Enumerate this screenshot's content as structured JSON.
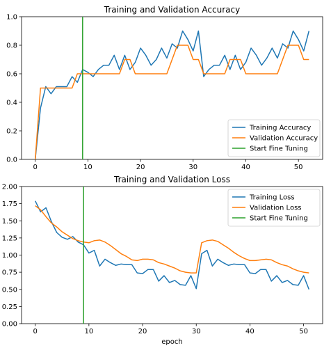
{
  "chart_data": [
    {
      "type": "line",
      "title": "Training and Validation Accuracy",
      "xlabel": "",
      "ylabel": "",
      "xlim": [
        -2.6,
        54.6
      ],
      "ylim": [
        0.0,
        1.0
      ],
      "xticks": [
        0,
        10,
        20,
        30,
        40,
        50
      ],
      "yticks": [
        0.0,
        0.2,
        0.4,
        0.6,
        0.8,
        1.0
      ],
      "ytick_labels": [
        "0.0",
        "0.2",
        "0.4",
        "0.6",
        "0.8",
        "1.0"
      ],
      "legend": {
        "placement": "bottom-right"
      },
      "vline": {
        "x": 9,
        "name": "Start Fine Tuning",
        "color": "#2ca02c"
      },
      "series": [
        {
          "name": "Training Accuracy",
          "color": "#1f77b4",
          "x": [
            0,
            1,
            2,
            3,
            4,
            5,
            6,
            7,
            8,
            9,
            10,
            11,
            12,
            13,
            14,
            15,
            16,
            17,
            18,
            19,
            20,
            21,
            22,
            23,
            24,
            25,
            26,
            27,
            28,
            29,
            30,
            31,
            32,
            33,
            34,
            35,
            36,
            37,
            38,
            39,
            40,
            41,
            42,
            43,
            44,
            45,
            46,
            47,
            48,
            49,
            50,
            51,
            52
          ],
          "values": [
            0.0,
            0.36,
            0.51,
            0.46,
            0.51,
            0.51,
            0.51,
            0.58,
            0.54,
            0.63,
            0.61,
            0.58,
            0.63,
            0.66,
            0.66,
            0.73,
            0.63,
            0.73,
            0.63,
            0.68,
            0.78,
            0.73,
            0.66,
            0.7,
            0.78,
            0.71,
            0.81,
            0.78,
            0.9,
            0.84,
            0.76,
            0.9,
            0.58,
            0.63,
            0.66,
            0.66,
            0.73,
            0.63,
            0.73,
            0.63,
            0.68,
            0.78,
            0.73,
            0.66,
            0.71,
            0.78,
            0.71,
            0.81,
            0.78,
            0.9,
            0.84,
            0.76,
            0.9
          ]
        },
        {
          "name": "Validation Accuracy",
          "color": "#ff7f0e",
          "x": [
            0,
            1,
            2,
            3,
            4,
            5,
            6,
            7,
            8,
            9,
            10,
            11,
            12,
            13,
            14,
            15,
            16,
            17,
            18,
            19,
            20,
            21,
            22,
            23,
            24,
            25,
            26,
            27,
            28,
            29,
            30,
            31,
            32,
            33,
            34,
            35,
            36,
            37,
            38,
            39,
            40,
            41,
            42,
            43,
            44,
            45,
            46,
            47,
            48,
            49,
            50,
            51,
            52
          ],
          "values": [
            0.0,
            0.5,
            0.5,
            0.5,
            0.5,
            0.5,
            0.5,
            0.5,
            0.6,
            0.6,
            0.6,
            0.6,
            0.6,
            0.6,
            0.6,
            0.6,
            0.6,
            0.7,
            0.7,
            0.6,
            0.6,
            0.6,
            0.6,
            0.6,
            0.6,
            0.6,
            0.7,
            0.8,
            0.8,
            0.8,
            0.7,
            0.7,
            0.6,
            0.6,
            0.6,
            0.6,
            0.6,
            0.7,
            0.7,
            0.7,
            0.6,
            0.6,
            0.6,
            0.6,
            0.6,
            0.6,
            0.6,
            0.7,
            0.8,
            0.8,
            0.8,
            0.7,
            0.7
          ]
        }
      ]
    },
    {
      "type": "line",
      "title": "Training and Validation Loss",
      "xlabel": "epoch",
      "ylabel": "",
      "xlim": [
        -2.55,
        53.55
      ],
      "ylim": [
        0.0,
        2.0
      ],
      "xticks": [
        0,
        10,
        20,
        30,
        40,
        50
      ],
      "yticks": [
        0.0,
        0.25,
        0.5,
        0.75,
        1.0,
        1.25,
        1.5,
        1.75,
        2.0
      ],
      "ytick_labels": [
        "0.00",
        "0.25",
        "0.50",
        "0.75",
        "1.00",
        "1.25",
        "1.50",
        "1.75",
        "2.00"
      ],
      "legend": {
        "placement": "top-right"
      },
      "vline": {
        "x": 9,
        "name": "Start Fine Tuning",
        "color": "#2ca02c"
      },
      "series": [
        {
          "name": "Training Loss",
          "color": "#1f77b4",
          "x": [
            0,
            1,
            2,
            3,
            4,
            5,
            6,
            7,
            8,
            9,
            10,
            11,
            12,
            13,
            14,
            15,
            16,
            17,
            18,
            19,
            20,
            21,
            22,
            23,
            24,
            25,
            26,
            27,
            28,
            29,
            30,
            31,
            32,
            33,
            34,
            35,
            36,
            37,
            38,
            39,
            40,
            41,
            42,
            43,
            44,
            45,
            46,
            47,
            48,
            49,
            50,
            51
          ],
          "values": [
            1.79,
            1.63,
            1.69,
            1.49,
            1.33,
            1.26,
            1.23,
            1.27,
            1.19,
            1.15,
            1.03,
            1.07,
            0.84,
            0.94,
            0.89,
            0.85,
            0.87,
            0.86,
            0.86,
            0.74,
            0.73,
            0.79,
            0.79,
            0.62,
            0.7,
            0.6,
            0.63,
            0.57,
            0.56,
            0.7,
            0.51,
            1.02,
            1.07,
            0.84,
            0.94,
            0.89,
            0.85,
            0.87,
            0.86,
            0.86,
            0.74,
            0.73,
            0.79,
            0.79,
            0.62,
            0.7,
            0.6,
            0.63,
            0.57,
            0.56,
            0.7,
            0.5
          ]
        },
        {
          "name": "Validation Loss",
          "color": "#ff7f0e",
          "x": [
            0,
            1,
            2,
            3,
            4,
            5,
            6,
            7,
            8,
            9,
            10,
            11,
            12,
            13,
            14,
            15,
            16,
            17,
            18,
            19,
            20,
            21,
            22,
            23,
            24,
            25,
            26,
            27,
            28,
            29,
            30,
            31,
            32,
            33,
            34,
            35,
            36,
            37,
            38,
            39,
            40,
            41,
            42,
            43,
            44,
            45,
            46,
            47,
            48,
            49,
            50,
            51
          ],
          "values": [
            1.72,
            1.66,
            1.56,
            1.47,
            1.41,
            1.34,
            1.29,
            1.24,
            1.21,
            1.19,
            1.18,
            1.21,
            1.22,
            1.19,
            1.14,
            1.08,
            1.02,
            0.98,
            0.93,
            0.92,
            0.94,
            0.94,
            0.93,
            0.89,
            0.87,
            0.84,
            0.81,
            0.77,
            0.75,
            0.74,
            0.74,
            1.18,
            1.21,
            1.22,
            1.2,
            1.15,
            1.1,
            1.04,
            0.99,
            0.95,
            0.92,
            0.92,
            0.93,
            0.94,
            0.93,
            0.89,
            0.86,
            0.84,
            0.8,
            0.77,
            0.75,
            0.74
          ]
        }
      ]
    }
  ]
}
